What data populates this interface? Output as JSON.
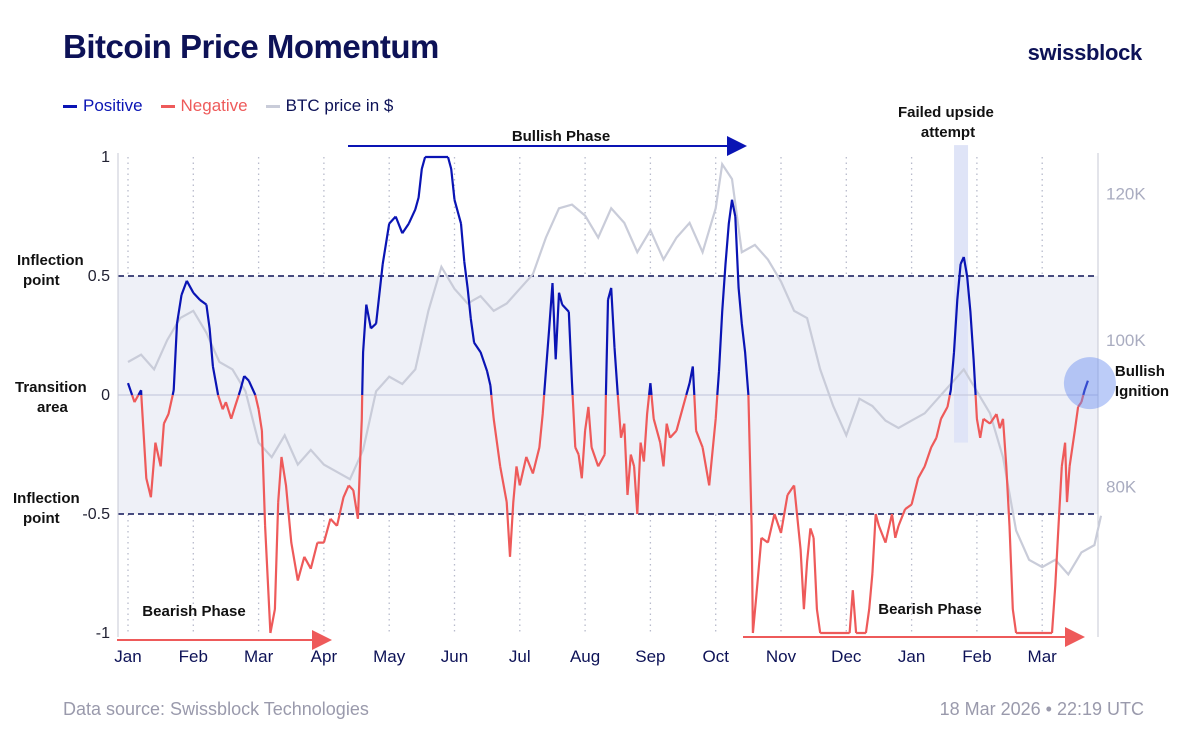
{
  "header": {
    "title": "Bitcoin Price Momentum",
    "brand": "swissblock"
  },
  "legend": {
    "positive": "Positive",
    "negative": "Negative",
    "btc": "BTC price in $"
  },
  "colors": {
    "positive": "#0a14b4",
    "negative": "#ee5a5a",
    "btc": "#c9ccd9",
    "band": "#eef0f7",
    "accent": "#0d1257"
  },
  "footer": {
    "source": "Data source: Swissblock Technologies",
    "timestamp": "18 Mar 2026 • 22:19 UTC"
  },
  "chart_data": {
    "type": "line",
    "title": "Bitcoin Price Momentum",
    "x_tick_labels": [
      "Jan",
      "Feb",
      "Mar",
      "Apr",
      "May",
      "Jun",
      "Jul",
      "Aug",
      "Sep",
      "Oct",
      "Nov",
      "Dec",
      "Jan",
      "Feb",
      "Mar"
    ],
    "x_range_months": [
      0,
      14.55
    ],
    "y_left": {
      "range": [
        -1,
        1
      ],
      "tick_labels": [
        "1",
        "0.5",
        "0",
        "-0.5",
        "-1"
      ],
      "tick_values": [
        1,
        0.5,
        0,
        -0.5,
        -1
      ]
    },
    "y_right": {
      "range": [
        60000,
        125000
      ],
      "tick_labels": [
        "120K",
        "100K",
        "80K"
      ],
      "tick_values": [
        120000,
        100000,
        80000
      ]
    },
    "transition_band": [
      -0.5,
      0.5
    ],
    "momentum_series": {
      "name": "Momentum",
      "positive_label": "Positive",
      "negative_label": "Negative",
      "points_month_value": [
        [
          0.0,
          0.05
        ],
        [
          0.1,
          -0.03
        ],
        [
          0.2,
          0.02
        ],
        [
          0.28,
          -0.35
        ],
        [
          0.35,
          -0.43
        ],
        [
          0.42,
          -0.2
        ],
        [
          0.5,
          -0.3
        ],
        [
          0.55,
          -0.12
        ],
        [
          0.62,
          -0.08
        ],
        [
          0.7,
          0.02
        ],
        [
          0.75,
          0.3
        ],
        [
          0.82,
          0.42
        ],
        [
          0.9,
          0.48
        ],
        [
          1.0,
          0.43
        ],
        [
          1.1,
          0.4
        ],
        [
          1.2,
          0.38
        ],
        [
          1.25,
          0.28
        ],
        [
          1.3,
          0.12
        ],
        [
          1.38,
          0.0
        ],
        [
          1.45,
          -0.06
        ],
        [
          1.5,
          -0.03
        ],
        [
          1.58,
          -0.1
        ],
        [
          1.65,
          -0.04
        ],
        [
          1.72,
          0.02
        ],
        [
          1.78,
          0.08
        ],
        [
          1.85,
          0.06
        ],
        [
          1.95,
          0.0
        ],
        [
          2.0,
          -0.06
        ],
        [
          2.05,
          -0.15
        ],
        [
          2.1,
          -0.55
        ],
        [
          2.18,
          -1.0
        ],
        [
          2.25,
          -0.9
        ],
        [
          2.3,
          -0.45
        ],
        [
          2.35,
          -0.26
        ],
        [
          2.42,
          -0.38
        ],
        [
          2.5,
          -0.62
        ],
        [
          2.6,
          -0.78
        ],
        [
          2.7,
          -0.68
        ],
        [
          2.8,
          -0.73
        ],
        [
          2.9,
          -0.62
        ],
        [
          3.0,
          -0.62
        ],
        [
          3.1,
          -0.52
        ],
        [
          3.2,
          -0.55
        ],
        [
          3.3,
          -0.43
        ],
        [
          3.38,
          -0.38
        ],
        [
          3.45,
          -0.4
        ],
        [
          3.52,
          -0.52
        ],
        [
          3.58,
          -0.1
        ],
        [
          3.6,
          0.18
        ],
        [
          3.65,
          0.38
        ],
        [
          3.72,
          0.28
        ],
        [
          3.8,
          0.3
        ],
        [
          3.9,
          0.55
        ],
        [
          4.0,
          0.72
        ],
        [
          4.1,
          0.75
        ],
        [
          4.2,
          0.68
        ],
        [
          4.3,
          0.72
        ],
        [
          4.4,
          0.78
        ],
        [
          4.45,
          0.83
        ],
        [
          4.5,
          0.95
        ],
        [
          4.55,
          1.0
        ],
        [
          4.9,
          1.0
        ],
        [
          4.95,
          0.95
        ],
        [
          5.0,
          0.82
        ],
        [
          5.1,
          0.72
        ],
        [
          5.15,
          0.56
        ],
        [
          5.2,
          0.45
        ],
        [
          5.25,
          0.32
        ],
        [
          5.3,
          0.22
        ],
        [
          5.4,
          0.18
        ],
        [
          5.5,
          0.1
        ],
        [
          5.55,
          0.04
        ],
        [
          5.6,
          -0.1
        ],
        [
          5.7,
          -0.3
        ],
        [
          5.8,
          -0.45
        ],
        [
          5.85,
          -0.68
        ],
        [
          5.9,
          -0.45
        ],
        [
          5.95,
          -0.3
        ],
        [
          6.0,
          -0.38
        ],
        [
          6.1,
          -0.26
        ],
        [
          6.2,
          -0.33
        ],
        [
          6.3,
          -0.22
        ],
        [
          6.35,
          -0.08
        ],
        [
          6.4,
          0.1
        ],
        [
          6.45,
          0.28
        ],
        [
          6.5,
          0.47
        ],
        [
          6.55,
          0.15
        ],
        [
          6.6,
          0.43
        ],
        [
          6.65,
          0.38
        ],
        [
          6.75,
          0.35
        ],
        [
          6.8,
          0.05
        ],
        [
          6.85,
          -0.22
        ],
        [
          6.9,
          -0.25
        ],
        [
          6.95,
          -0.35
        ],
        [
          7.0,
          -0.15
        ],
        [
          7.05,
          -0.05
        ],
        [
          7.1,
          -0.22
        ],
        [
          7.2,
          -0.3
        ],
        [
          7.3,
          -0.25
        ],
        [
          7.35,
          0.4
        ],
        [
          7.4,
          0.45
        ],
        [
          7.45,
          0.2
        ],
        [
          7.5,
          0.0
        ],
        [
          7.55,
          -0.18
        ],
        [
          7.6,
          -0.12
        ],
        [
          7.65,
          -0.42
        ],
        [
          7.7,
          -0.25
        ],
        [
          7.75,
          -0.3
        ],
        [
          7.8,
          -0.5
        ],
        [
          7.85,
          -0.2
        ],
        [
          7.9,
          -0.28
        ],
        [
          7.95,
          -0.08
        ],
        [
          8.0,
          0.05
        ],
        [
          8.05,
          -0.1
        ],
        [
          8.15,
          -0.2
        ],
        [
          8.2,
          -0.3
        ],
        [
          8.25,
          -0.12
        ],
        [
          8.3,
          -0.18
        ],
        [
          8.4,
          -0.15
        ],
        [
          8.5,
          -0.05
        ],
        [
          8.6,
          0.05
        ],
        [
          8.65,
          0.12
        ],
        [
          8.7,
          -0.15
        ],
        [
          8.8,
          -0.22
        ],
        [
          8.9,
          -0.38
        ],
        [
          9.0,
          -0.1
        ],
        [
          9.05,
          0.1
        ],
        [
          9.1,
          0.35
        ],
        [
          9.15,
          0.55
        ],
        [
          9.2,
          0.72
        ],
        [
          9.25,
          0.82
        ],
        [
          9.3,
          0.75
        ],
        [
          9.35,
          0.45
        ],
        [
          9.4,
          0.3
        ],
        [
          9.45,
          0.18
        ],
        [
          9.5,
          0.0
        ],
        [
          9.55,
          -0.55
        ],
        [
          9.57,
          -1.0
        ],
        [
          9.62,
          -0.85
        ],
        [
          9.7,
          -0.6
        ],
        [
          9.8,
          -0.62
        ],
        [
          9.9,
          -0.5
        ],
        [
          10.0,
          -0.58
        ],
        [
          10.1,
          -0.42
        ],
        [
          10.2,
          -0.38
        ],
        [
          10.3,
          -0.65
        ],
        [
          10.35,
          -0.9
        ],
        [
          10.4,
          -0.7
        ],
        [
          10.45,
          -0.56
        ],
        [
          10.5,
          -0.6
        ],
        [
          10.55,
          -0.9
        ],
        [
          10.6,
          -1.0
        ],
        [
          11.05,
          -1.0
        ],
        [
          11.1,
          -0.82
        ],
        [
          11.15,
          -1.0
        ],
        [
          11.3,
          -1.0
        ],
        [
          11.35,
          -0.9
        ],
        [
          11.4,
          -0.75
        ],
        [
          11.45,
          -0.5
        ],
        [
          11.5,
          -0.55
        ],
        [
          11.6,
          -0.62
        ],
        [
          11.7,
          -0.5
        ],
        [
          11.75,
          -0.6
        ],
        [
          11.8,
          -0.55
        ],
        [
          11.9,
          -0.48
        ],
        [
          12.0,
          -0.46
        ],
        [
          12.1,
          -0.35
        ],
        [
          12.2,
          -0.3
        ],
        [
          12.3,
          -0.22
        ],
        [
          12.38,
          -0.18
        ],
        [
          12.45,
          -0.1
        ],
        [
          12.55,
          -0.05
        ],
        [
          12.6,
          0.02
        ],
        [
          12.65,
          0.18
        ],
        [
          12.7,
          0.4
        ],
        [
          12.75,
          0.55
        ],
        [
          12.8,
          0.58
        ],
        [
          12.85,
          0.5
        ],
        [
          12.9,
          0.35
        ],
        [
          12.95,
          0.15
        ],
        [
          13.0,
          -0.1
        ],
        [
          13.05,
          -0.18
        ],
        [
          13.1,
          -0.1
        ],
        [
          13.2,
          -0.12
        ],
        [
          13.3,
          -0.08
        ],
        [
          13.35,
          -0.14
        ],
        [
          13.4,
          -0.1
        ],
        [
          13.45,
          -0.3
        ],
        [
          13.5,
          -0.55
        ],
        [
          13.55,
          -0.9
        ],
        [
          13.6,
          -1.0
        ],
        [
          14.15,
          -1.0
        ],
        [
          14.2,
          -0.8
        ],
        [
          14.25,
          -0.55
        ],
        [
          14.3,
          -0.3
        ],
        [
          14.35,
          -0.2
        ],
        [
          14.38,
          -0.45
        ],
        [
          14.42,
          -0.3
        ],
        [
          14.5,
          -0.15
        ],
        [
          14.55,
          -0.05
        ],
        [
          14.6,
          -0.03
        ],
        [
          14.65,
          0.02
        ],
        [
          14.7,
          0.06
        ]
      ]
    },
    "btc_series": {
      "name": "BTC price in $",
      "points_month_value": [
        [
          0.0,
          97000
        ],
        [
          0.2,
          98000
        ],
        [
          0.4,
          96000
        ],
        [
          0.6,
          100000
        ],
        [
          0.8,
          103000
        ],
        [
          1.0,
          104000
        ],
        [
          1.2,
          101000
        ],
        [
          1.4,
          97000
        ],
        [
          1.6,
          96000
        ],
        [
          1.8,
          93000
        ],
        [
          2.0,
          86000
        ],
        [
          2.2,
          84000
        ],
        [
          2.4,
          87000
        ],
        [
          2.6,
          83000
        ],
        [
          2.8,
          85000
        ],
        [
          3.0,
          83000
        ],
        [
          3.2,
          82000
        ],
        [
          3.4,
          81000
        ],
        [
          3.6,
          85000
        ],
        [
          3.8,
          93000
        ],
        [
          4.0,
          95000
        ],
        [
          4.2,
          94000
        ],
        [
          4.4,
          96000
        ],
        [
          4.6,
          104000
        ],
        [
          4.8,
          110000
        ],
        [
          5.0,
          107000
        ],
        [
          5.2,
          105000
        ],
        [
          5.4,
          106000
        ],
        [
          5.6,
          104000
        ],
        [
          5.8,
          105000
        ],
        [
          6.0,
          107000
        ],
        [
          6.2,
          109000
        ],
        [
          6.4,
          114000
        ],
        [
          6.6,
          118000
        ],
        [
          6.8,
          118500
        ],
        [
          7.0,
          117000
        ],
        [
          7.2,
          114000
        ],
        [
          7.4,
          118000
        ],
        [
          7.6,
          116000
        ],
        [
          7.8,
          112000
        ],
        [
          8.0,
          115000
        ],
        [
          8.2,
          111000
        ],
        [
          8.4,
          114000
        ],
        [
          8.6,
          116000
        ],
        [
          8.8,
          112000
        ],
        [
          9.0,
          118000
        ],
        [
          9.1,
          124000
        ],
        [
          9.25,
          122000
        ],
        [
          9.4,
          112000
        ],
        [
          9.6,
          113000
        ],
        [
          9.8,
          111000
        ],
        [
          10.0,
          108000
        ],
        [
          10.2,
          104000
        ],
        [
          10.4,
          103000
        ],
        [
          10.6,
          96000
        ],
        [
          10.8,
          91000
        ],
        [
          11.0,
          87000
        ],
        [
          11.2,
          92000
        ],
        [
          11.4,
          91000
        ],
        [
          11.6,
          89000
        ],
        [
          11.8,
          88000
        ],
        [
          12.0,
          89000
        ],
        [
          12.2,
          90000
        ],
        [
          12.4,
          92000
        ],
        [
          12.6,
          94000
        ],
        [
          12.8,
          96000
        ],
        [
          13.0,
          93000
        ],
        [
          13.2,
          90000
        ],
        [
          13.4,
          84000
        ],
        [
          13.6,
          74000
        ],
        [
          13.8,
          70000
        ],
        [
          14.0,
          69000
        ],
        [
          14.2,
          70000
        ],
        [
          14.4,
          68000
        ],
        [
          14.6,
          71000
        ],
        [
          14.8,
          72000
        ],
        [
          14.9,
          76000
        ]
      ]
    },
    "annotations": {
      "bullish_phase": "Bullish Phase",
      "bearish_phase_1": "Bearish Phase",
      "bearish_phase_2": "Bearish Phase",
      "failed_upside": [
        "Failed upside",
        "attempt"
      ],
      "bullish_ignition": [
        "Bullish",
        "Ignition"
      ],
      "inflection_top": [
        "Inflection",
        "point"
      ],
      "inflection_bottom": [
        "Inflection",
        "point"
      ],
      "transition_area": [
        "Transition",
        "area"
      ]
    }
  }
}
